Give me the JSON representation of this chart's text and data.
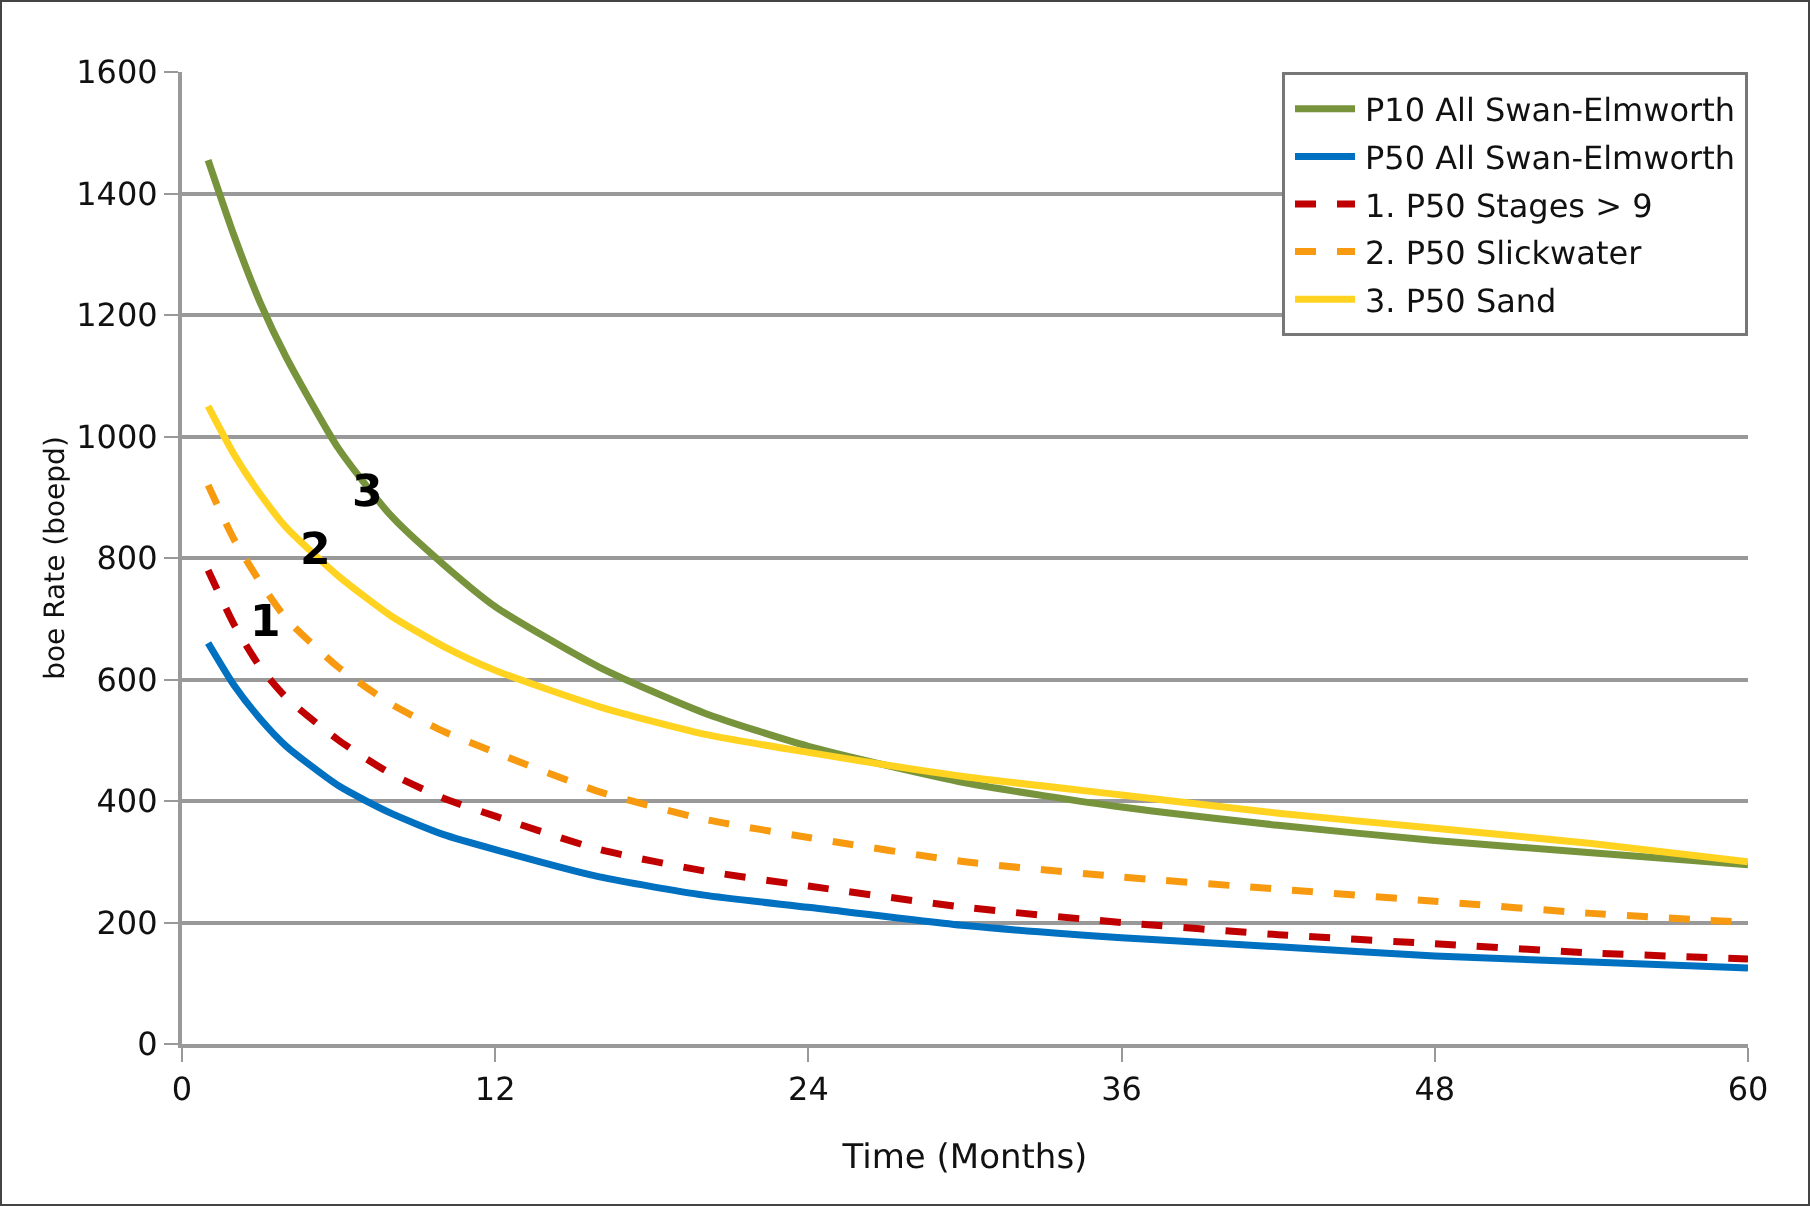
{
  "chart_data": {
    "type": "line",
    "xlabel": "Time (Months)",
    "ylabel": "boe Rate (boepd)",
    "x": [
      1,
      2,
      3,
      4,
      6,
      8,
      10,
      12,
      16,
      20,
      24,
      30,
      36,
      42,
      48,
      54,
      60
    ],
    "series": [
      {
        "name": "P10 All Swan-Elmworth",
        "color": "#77933c",
        "line_style": "solid",
        "values": [
          1455,
          1330,
          1220,
          1130,
          980,
          870,
          790,
          720,
          620,
          545,
          490,
          430,
          390,
          360,
          335,
          315,
          295
        ]
      },
      {
        "name": "P50 All Swan-Elmworth",
        "color": "#0070c0",
        "line_style": "solid",
        "values": [
          660,
          590,
          535,
          490,
          425,
          380,
          345,
          320,
          275,
          245,
          225,
          195,
          175,
          160,
          145,
          135,
          125
        ]
      },
      {
        "name": "1. P50 Stages > 9",
        "color": "#c00000",
        "line_style": "dashed",
        "values": [
          780,
          690,
          620,
          570,
          500,
          445,
          405,
          375,
          320,
          285,
          260,
          225,
          200,
          180,
          165,
          150,
          140
        ]
      },
      {
        "name": "2. P50 Slickwater",
        "color": "#f79a10",
        "line_style": "dashed",
        "values": [
          920,
          830,
          760,
          700,
          620,
          560,
          515,
          480,
          415,
          370,
          340,
          300,
          275,
          255,
          235,
          215,
          200
        ]
      },
      {
        "name": "3. P50 Sand",
        "color": "#ffd320",
        "line_style": "solid",
        "values": [
          1050,
          970,
          905,
          850,
          770,
          705,
          655,
          615,
          555,
          510,
          480,
          440,
          410,
          380,
          355,
          330,
          300
        ]
      }
    ],
    "xlim": [
      0,
      60
    ],
    "xticks": [
      0,
      12,
      24,
      36,
      48,
      60
    ],
    "ylim": [
      0,
      1600
    ],
    "yticks": [
      0,
      200,
      400,
      600,
      800,
      1000,
      1200,
      1400,
      1600
    ],
    "grid": "y",
    "legend": "top right",
    "marker": "none",
    "annotations": [
      {
        "text": "1",
        "x": 3,
        "y": 620
      },
      {
        "text": "2",
        "x": 4,
        "y": 700
      },
      {
        "text": "3",
        "x": 6,
        "y": 770
      }
    ]
  }
}
